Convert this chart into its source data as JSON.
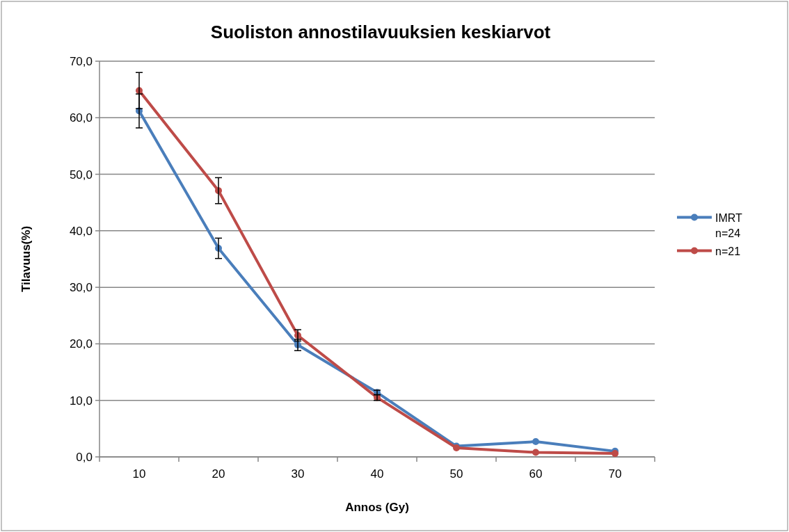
{
  "chart_data": {
    "type": "line",
    "title": "Suoliston annostilavuuksien keskiarvot",
    "xlabel": "Annos (Gy)",
    "ylabel": "Tilavuus(%)",
    "categories": [
      "10",
      "20",
      "30",
      "40",
      "50",
      "60",
      "70"
    ],
    "series": [
      {
        "name": "IMRT\nn=24",
        "color": "#4a7ebb",
        "values": [
          61.2,
          36.9,
          19.8,
          11.4,
          1.9,
          2.7,
          1.0
        ],
        "errors": [
          3.0,
          1.8,
          1.0,
          0.4,
          null,
          null,
          null
        ]
      },
      {
        "name": "n=21",
        "color": "#be4b48",
        "values": [
          64.8,
          47.1,
          21.5,
          10.5,
          1.6,
          0.8,
          0.6
        ],
        "errors": [
          3.2,
          2.3,
          1.0,
          0.5,
          null,
          null,
          null
        ]
      }
    ],
    "ylim": [
      0,
      70
    ],
    "yticks": [
      {
        "value": 0,
        "label": "0,0"
      },
      {
        "value": 10,
        "label": "10,0"
      },
      {
        "value": 20,
        "label": "20,0"
      },
      {
        "value": 30,
        "label": "30,0"
      },
      {
        "value": 40,
        "label": "40,0"
      },
      {
        "value": 50,
        "label": "50,0"
      },
      {
        "value": 60,
        "label": "60,0"
      },
      {
        "value": 70,
        "label": "70,0"
      }
    ],
    "grid": "y",
    "legend": "right",
    "marker": "circle",
    "line_style": "solid"
  }
}
